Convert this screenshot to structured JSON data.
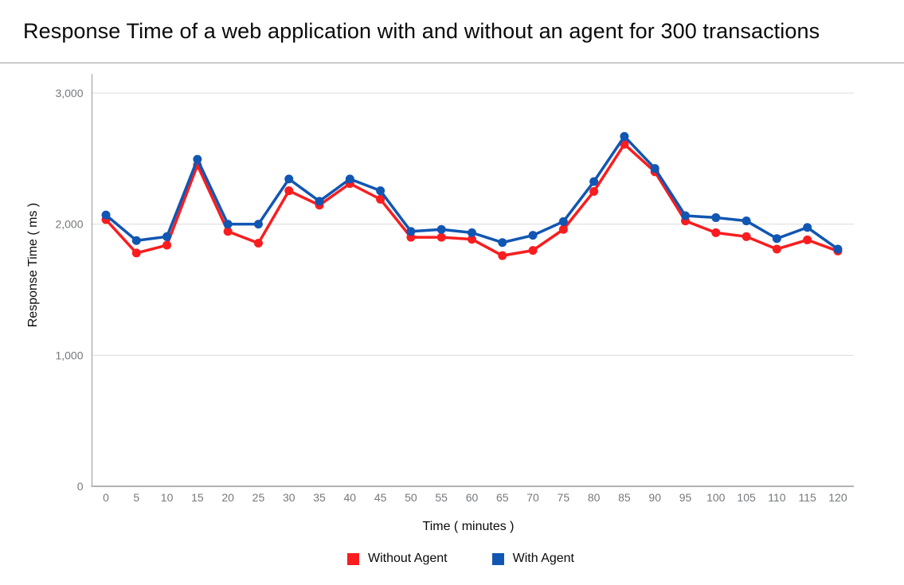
{
  "title": "Response Time of a web application with and without an agent for 300 transactions",
  "chart_data": {
    "type": "line",
    "title": "Response Time of a web application with and without an agent for 300 transactions",
    "xlabel": "Time ( minutes )",
    "ylabel": "Response Time ( ms )",
    "x": [
      0,
      5,
      10,
      15,
      20,
      25,
      30,
      35,
      40,
      45,
      50,
      55,
      60,
      65,
      70,
      75,
      80,
      85,
      90,
      95,
      100,
      105,
      110,
      115,
      120
    ],
    "ylim": [
      0,
      3000
    ],
    "yticks": [
      0,
      1000,
      2000,
      3000
    ],
    "ytick_labels": [
      "0",
      "1,000",
      "2,000",
      "3,000"
    ],
    "grid": true,
    "legend_position": "bottom",
    "marker": "circle",
    "series": [
      {
        "name": "Without Agent",
        "color": "#f91d1f",
        "values": [
          2035,
          1780,
          1840,
          2450,
          1945,
          1855,
          2255,
          2145,
          2310,
          2190,
          1900,
          1900,
          1885,
          1760,
          1800,
          1960,
          2250,
          2610,
          2400,
          2025,
          1935,
          1905,
          1810,
          1880,
          1795
        ]
      },
      {
        "name": "With Agent",
        "color": "#1156b2",
        "values": [
          2070,
          1875,
          1905,
          2495,
          2000,
          2000,
          2345,
          2175,
          2345,
          2255,
          1945,
          1960,
          1935,
          1860,
          1915,
          2020,
          2325,
          2670,
          2425,
          2065,
          2050,
          2025,
          1890,
          1975,
          1810
        ]
      }
    ]
  },
  "colors": {
    "background": "#ffffff",
    "title_text": "#0a0a0a",
    "axis_label_text": "#75787d",
    "gridline": "#dcdcdc",
    "axis_line": "#b3b3b3",
    "divider": "#cbcbcb",
    "without_agent": "#f91d1f",
    "with_agent": "#1156b2"
  }
}
